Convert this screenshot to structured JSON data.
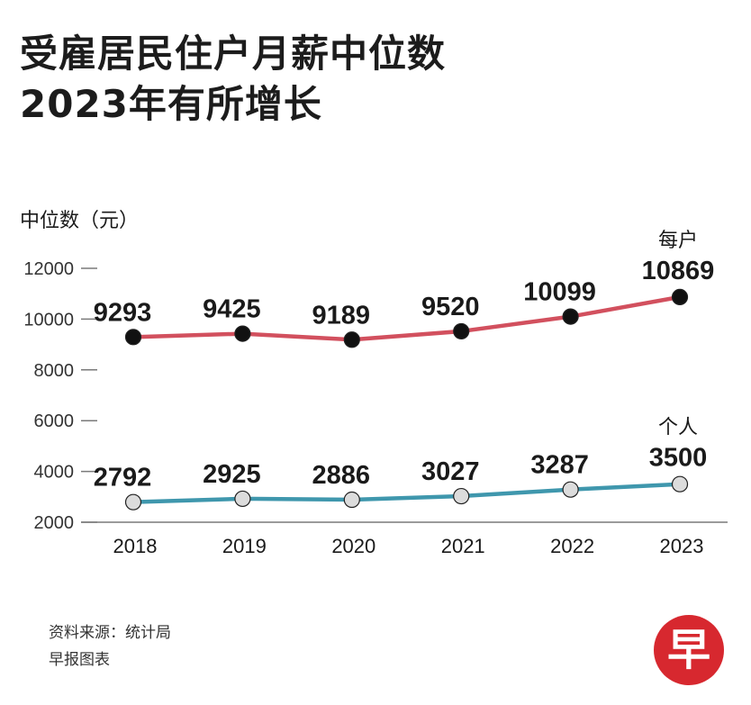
{
  "title": {
    "line1": "受雇居民住户月薪中位数",
    "line2": "2023年有所增长"
  },
  "footer": {
    "source": "资料来源：统计局",
    "credit": "早报图表"
  },
  "logo": {
    "text": "早",
    "color": "#d7282f"
  },
  "chart_data": {
    "type": "line",
    "ylabel": "中位数（元）",
    "ylim": [
      2000,
      12000
    ],
    "yticks": [
      2000,
      4000,
      6000,
      8000,
      10000,
      12000
    ],
    "categories": [
      "2018",
      "2019",
      "2020",
      "2021",
      "2022",
      "2023"
    ],
    "series": [
      {
        "name": "每户",
        "values": [
          9293,
          9425,
          9189,
          9520,
          10099,
          10869
        ],
        "color": "#d2505e",
        "marker": "#111111"
      },
      {
        "name": "个人",
        "values": [
          2792,
          2925,
          2886,
          3027,
          3287,
          3500
        ],
        "color": "#3f97ad",
        "marker": "#dcdcdc"
      }
    ]
  }
}
